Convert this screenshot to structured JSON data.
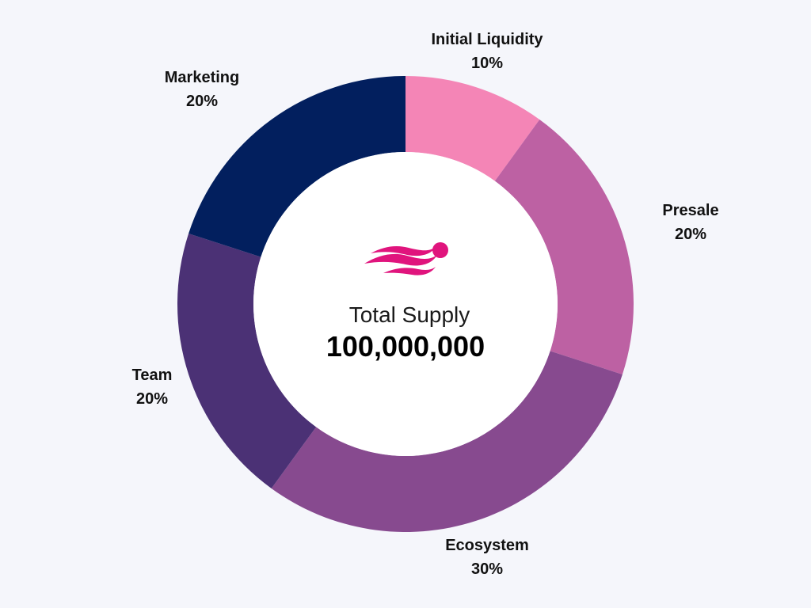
{
  "chart_data": {
    "type": "pie",
    "style": "donut",
    "center": {
      "title": "Total Supply",
      "value": "100,000,000"
    },
    "slices": [
      {
        "label": "Initial Liquidity",
        "value": 10,
        "value_label": "10%",
        "color": "#f485b6"
      },
      {
        "label": "Presale",
        "value": 20,
        "value_label": "20%",
        "color": "#bd61a3"
      },
      {
        "label": "Ecosystem",
        "value": 30,
        "value_label": "30%",
        "color": "#874a8f"
      },
      {
        "label": "Team",
        "value": 20,
        "value_label": "20%",
        "color": "#4b3175"
      },
      {
        "label": "Marketing",
        "value": 20,
        "value_label": "20%",
        "color": "#021f5e"
      }
    ]
  },
  "logo": {
    "icon": "wave-logo-icon",
    "color": "#e0147d"
  }
}
